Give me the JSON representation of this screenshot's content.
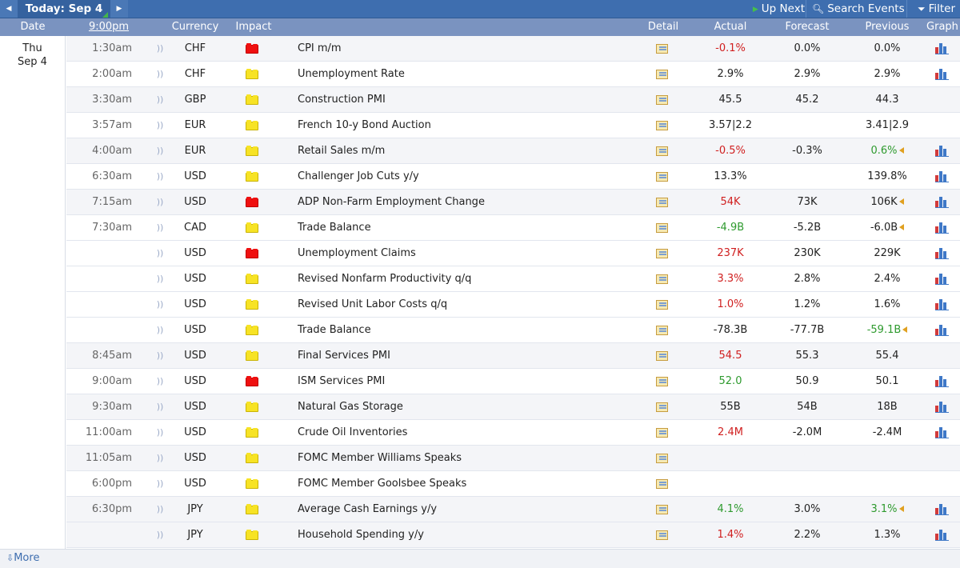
{
  "toolbar": {
    "today_label": "Today: Sep 4",
    "up_next": "Up Next",
    "search": "Search Events",
    "filter": "Filter"
  },
  "header": {
    "date": "Date",
    "time": "9:00pm",
    "currency": "Currency",
    "impact": "Impact",
    "detail": "Detail",
    "actual": "Actual",
    "forecast": "Forecast",
    "previous": "Previous",
    "graph": "Graph"
  },
  "date": {
    "day": "Thu",
    "date": "Sep 4"
  },
  "colors": {
    "toolbar": "#3e6eaf",
    "header": "#7a93c0",
    "better": "#2e9a2e",
    "worse": "#d01f1f"
  },
  "rows": [
    {
      "time": "1:30am",
      "currency": "CHF",
      "impact": "high",
      "event": "CPI m/m",
      "actual": "-0.1%",
      "actual_color": "red",
      "forecast": "0.0%",
      "previous": "0.0%",
      "prev_color": "black",
      "revised": false,
      "graph": true
    },
    {
      "time": "2:00am",
      "currency": "CHF",
      "impact": "med",
      "event": "Unemployment Rate",
      "actual": "2.9%",
      "actual_color": "black",
      "forecast": "2.9%",
      "previous": "2.9%",
      "prev_color": "black",
      "revised": false,
      "graph": true
    },
    {
      "time": "3:30am",
      "currency": "GBP",
      "impact": "med",
      "event": "Construction PMI",
      "actual": "45.5",
      "actual_color": "black",
      "forecast": "45.2",
      "previous": "44.3",
      "prev_color": "black",
      "revised": false,
      "graph": false
    },
    {
      "time": "3:57am",
      "currency": "EUR",
      "impact": "med",
      "event": "French 10-y Bond Auction",
      "actual": "3.57|2.2",
      "actual_color": "black",
      "forecast": "",
      "previous": "3.41|2.9",
      "prev_color": "black",
      "revised": false,
      "graph": false
    },
    {
      "time": "4:00am",
      "currency": "EUR",
      "impact": "med",
      "event": "Retail Sales m/m",
      "actual": "-0.5%",
      "actual_color": "red",
      "forecast": "-0.3%",
      "previous": "0.6%",
      "prev_color": "green",
      "revised": true,
      "graph": true
    },
    {
      "time": "6:30am",
      "currency": "USD",
      "impact": "med",
      "event": "Challenger Job Cuts y/y",
      "actual": "13.3%",
      "actual_color": "black",
      "forecast": "",
      "previous": "139.8%",
      "prev_color": "black",
      "revised": false,
      "graph": true
    },
    {
      "time": "7:15am",
      "currency": "USD",
      "impact": "high",
      "event": "ADP Non-Farm Employment Change",
      "actual": "54K",
      "actual_color": "red",
      "forecast": "73K",
      "previous": "106K",
      "prev_color": "black",
      "revised": true,
      "graph": true
    },
    {
      "time": "7:30am",
      "currency": "CAD",
      "impact": "med",
      "event": "Trade Balance",
      "actual": "-4.9B",
      "actual_color": "green",
      "forecast": "-5.2B",
      "previous": "-6.0B",
      "prev_color": "black",
      "revised": true,
      "graph": true
    },
    {
      "time": "",
      "currency": "USD",
      "impact": "high",
      "event": "Unemployment Claims",
      "actual": "237K",
      "actual_color": "red",
      "forecast": "230K",
      "previous": "229K",
      "prev_color": "black",
      "revised": false,
      "graph": true
    },
    {
      "time": "",
      "currency": "USD",
      "impact": "med",
      "event": "Revised Nonfarm Productivity q/q",
      "actual": "3.3%",
      "actual_color": "red",
      "forecast": "2.8%",
      "previous": "2.4%",
      "prev_color": "black",
      "revised": false,
      "graph": true
    },
    {
      "time": "",
      "currency": "USD",
      "impact": "med",
      "event": "Revised Unit Labor Costs q/q",
      "actual": "1.0%",
      "actual_color": "red",
      "forecast": "1.2%",
      "previous": "1.6%",
      "prev_color": "black",
      "revised": false,
      "graph": true
    },
    {
      "time": "",
      "currency": "USD",
      "impact": "med",
      "event": "Trade Balance",
      "actual": "-78.3B",
      "actual_color": "black",
      "forecast": "-77.7B",
      "previous": "-59.1B",
      "prev_color": "green",
      "revised": true,
      "graph": true
    },
    {
      "time": "8:45am",
      "currency": "USD",
      "impact": "med",
      "event": "Final Services PMI",
      "actual": "54.5",
      "actual_color": "red",
      "forecast": "55.3",
      "previous": "55.4",
      "prev_color": "black",
      "revised": false,
      "graph": false
    },
    {
      "time": "9:00am",
      "currency": "USD",
      "impact": "high",
      "event": "ISM Services PMI",
      "actual": "52.0",
      "actual_color": "green",
      "forecast": "50.9",
      "previous": "50.1",
      "prev_color": "black",
      "revised": false,
      "graph": true
    },
    {
      "time": "9:30am",
      "currency": "USD",
      "impact": "med",
      "event": "Natural Gas Storage",
      "actual": "55B",
      "actual_color": "black",
      "forecast": "54B",
      "previous": "18B",
      "prev_color": "black",
      "revised": false,
      "graph": true
    },
    {
      "time": "11:00am",
      "currency": "USD",
      "impact": "med",
      "event": "Crude Oil Inventories",
      "actual": "2.4M",
      "actual_color": "red",
      "forecast": "-2.0M",
      "previous": "-2.4M",
      "prev_color": "black",
      "revised": false,
      "graph": true
    },
    {
      "time": "11:05am",
      "currency": "USD",
      "impact": "med",
      "event": "FOMC Member Williams Speaks",
      "actual": "",
      "actual_color": "black",
      "forecast": "",
      "previous": "",
      "prev_color": "black",
      "revised": false,
      "graph": false
    },
    {
      "time": "6:00pm",
      "currency": "USD",
      "impact": "med",
      "event": "FOMC Member Goolsbee Speaks",
      "actual": "",
      "actual_color": "black",
      "forecast": "",
      "previous": "",
      "prev_color": "black",
      "revised": false,
      "graph": false
    },
    {
      "time": "6:30pm",
      "currency": "JPY",
      "impact": "med",
      "event": "Average Cash Earnings y/y",
      "actual": "4.1%",
      "actual_color": "green",
      "forecast": "3.0%",
      "previous": "3.1%",
      "prev_color": "green",
      "revised": true,
      "graph": true
    },
    {
      "time": "",
      "currency": "JPY",
      "impact": "med",
      "event": "Household Spending y/y",
      "actual": "1.4%",
      "actual_color": "red",
      "forecast": "2.2%",
      "previous": "1.3%",
      "prev_color": "black",
      "revised": false,
      "graph": true
    }
  ],
  "footer": {
    "more": "More"
  }
}
